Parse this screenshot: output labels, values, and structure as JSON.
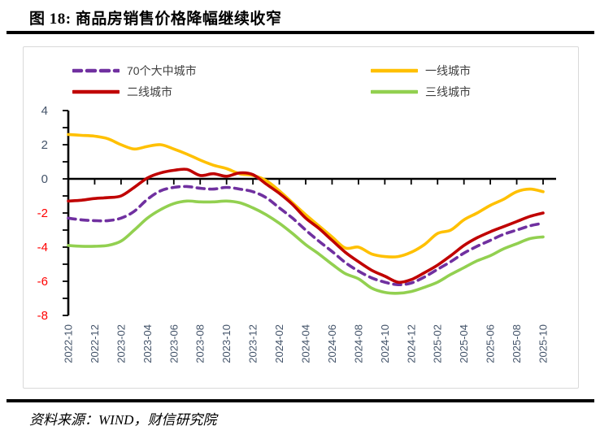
{
  "figure": {
    "title": "图 18: 商品房销售价格降幅继续收窄",
    "source": "资料来源：WIND，财信研究院"
  },
  "chart_data": {
    "type": "line",
    "title": "图 18: 商品房销售价格降幅继续收窄",
    "xlabel": "",
    "ylabel": "",
    "unit": "%",
    "ylim": [
      -8,
      4
    ],
    "y_tick_step": 2,
    "x_tick_every": 2,
    "grid": false,
    "legend_position": "top",
    "axis_style": {
      "positive_tick_color": "#44546A",
      "negative_tick_color": "#FF0000",
      "x_tick_label_color": "#44546A",
      "axis_line_color": "#000000"
    },
    "x": [
      "2022-10",
      "2022-11",
      "2022-12",
      "2023-01",
      "2023-02",
      "2023-03",
      "2023-04",
      "2023-05",
      "2023-06",
      "2023-07",
      "2023-08",
      "2023-09",
      "2023-10",
      "2023-11",
      "2023-12",
      "2024-01",
      "2024-02",
      "2024-03",
      "2024-04",
      "2024-05",
      "2024-06",
      "2024-07",
      "2024-08",
      "2024-09",
      "2024-10",
      "2024-11",
      "2024-12",
      "2025-01",
      "2025-02",
      "2025-03",
      "2025-04",
      "2025-05",
      "2025-06",
      "2025-07",
      "2025-08",
      "2025-09",
      "2025-10"
    ],
    "series": [
      {
        "name": "70个大中城市",
        "color": "#7030A0",
        "dashed": true,
        "values": [
          -2.3,
          -2.4,
          -2.45,
          -2.45,
          -2.3,
          -1.9,
          -1.2,
          -0.7,
          -0.5,
          -0.45,
          -0.55,
          -0.6,
          -0.5,
          -0.6,
          -0.75,
          -1.1,
          -1.7,
          -2.3,
          -3.0,
          -3.65,
          -4.25,
          -4.9,
          -5.4,
          -5.8,
          -6.05,
          -6.2,
          -6.1,
          -5.75,
          -5.3,
          -4.85,
          -4.35,
          -3.95,
          -3.6,
          -3.25,
          -3.0,
          -2.75,
          -2.6
        ]
      },
      {
        "name": "一线城市",
        "color": "#FFC000",
        "dashed": false,
        "values": [
          2.6,
          2.55,
          2.5,
          2.35,
          2.0,
          1.75,
          1.9,
          2.0,
          1.75,
          1.45,
          1.1,
          0.8,
          0.6,
          0.3,
          0.2,
          -0.1,
          -0.7,
          -1.4,
          -2.1,
          -2.75,
          -3.4,
          -4.05,
          -4.0,
          -4.4,
          -4.55,
          -4.55,
          -4.3,
          -3.85,
          -3.2,
          -3.0,
          -2.4,
          -2.0,
          -1.55,
          -1.2,
          -0.75,
          -0.6,
          -0.75
        ]
      },
      {
        "name": "二线城市",
        "color": "#C00000",
        "dashed": false,
        "values": [
          -1.3,
          -1.25,
          -1.15,
          -1.1,
          -1.0,
          -0.5,
          0.05,
          0.35,
          0.5,
          0.55,
          0.2,
          0.3,
          0.15,
          0.35,
          0.25,
          -0.3,
          -0.85,
          -1.5,
          -2.3,
          -2.9,
          -3.6,
          -4.3,
          -4.85,
          -5.35,
          -5.7,
          -6.05,
          -5.9,
          -5.5,
          -5.05,
          -4.5,
          -3.9,
          -3.45,
          -3.1,
          -2.8,
          -2.5,
          -2.2,
          -2.0
        ]
      },
      {
        "name": "三线城市",
        "color": "#92D050",
        "dashed": false,
        "values": [
          -3.9,
          -3.95,
          -3.95,
          -3.9,
          -3.65,
          -3.0,
          -2.3,
          -1.8,
          -1.45,
          -1.3,
          -1.35,
          -1.35,
          -1.3,
          -1.4,
          -1.7,
          -2.1,
          -2.6,
          -3.2,
          -3.85,
          -4.4,
          -5.0,
          -5.55,
          -5.85,
          -6.4,
          -6.65,
          -6.7,
          -6.6,
          -6.35,
          -6.05,
          -5.6,
          -5.2,
          -4.8,
          -4.5,
          -4.1,
          -3.8,
          -3.5,
          -3.4
        ]
      }
    ],
    "legend_order": [
      0,
      2,
      1,
      3
    ]
  }
}
